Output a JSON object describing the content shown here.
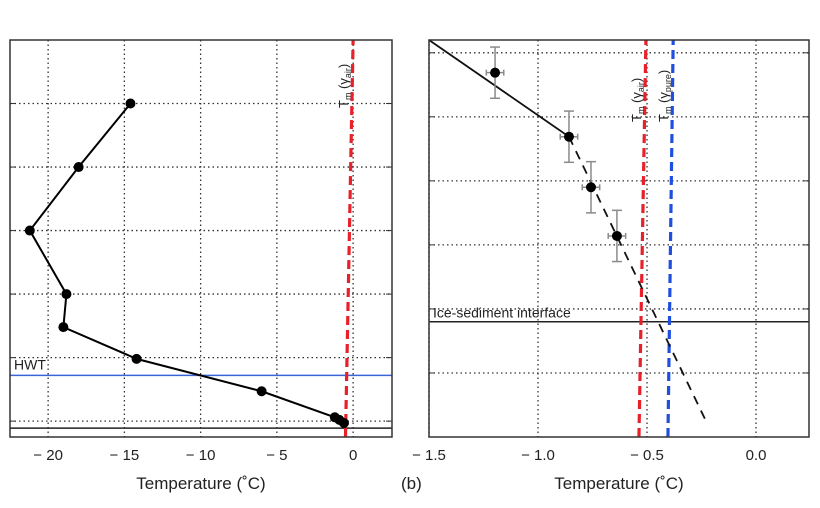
{
  "chart_data": [
    {
      "type": "line",
      "panel_label": "",
      "xlabel": "Temperature (˚C)",
      "ylabel": "",
      "xlim": [
        -22.5,
        2.55
      ],
      "ylim": [
        -0.25,
        6
      ],
      "xticks": [
        -20,
        -15,
        -10,
        -5,
        0
      ],
      "xtick_labels": [
        "− 20",
        "− 15",
        "− 10",
        "− 5",
        "0"
      ],
      "ygrid": [
        0,
        1,
        2,
        3,
        4,
        5
      ],
      "grid": true,
      "series": [
        {
          "x": [
            -14.6,
            -18.0,
            -21.2,
            -18.8,
            -19.0,
            -14.2,
            -6.0,
            -1.2,
            -0.9,
            -0.6
          ],
          "y": [
            5,
            4,
            3,
            2,
            1.48,
            0.98,
            0.47,
            0.06,
            0.02,
            -0.03
          ],
          "color": "#000000",
          "marker": "circle"
        }
      ],
      "vlines": [
        {
          "label_main": "T",
          "label_sub": "m",
          "label_paren": "(γ",
          "label_sub2": "air",
          "label_close": ")",
          "x_bottom": -0.5,
          "x_top": 0,
          "color": "#e8202a",
          "style": "dashed"
        }
      ],
      "hlines": [
        {
          "label": "HWT",
          "y": 0.72,
          "color": "#3a64d8"
        },
        {
          "label": "",
          "y": -0.11,
          "color": "#222222"
        }
      ]
    },
    {
      "type": "scatter",
      "panel_label": "(b)",
      "xlabel": "Temperature (˚C)",
      "ylabel": "",
      "xlim": [
        -1.5,
        0.243
      ],
      "ylim": [
        -1,
        5.2
      ],
      "xticks": [
        -1.5,
        -1.0,
        -0.5,
        0.0
      ],
      "xtick_labels": [
        "− 1.5",
        "− 1.0",
        "− 0.5",
        "0.0"
      ],
      "ygrid": [
        0,
        1,
        2,
        3,
        4,
        5
      ],
      "grid": true,
      "points": {
        "x": [
          -1.197,
          -0.858,
          -0.757,
          -0.638
        ],
        "y": [
          4.69,
          3.69,
          2.9,
          2.14
        ],
        "xerr": 0.04,
        "yerr": 0.4,
        "color": "#000000",
        "errcolor": "#8a8a8a"
      },
      "fit_solid": {
        "x": [
          -1.5,
          -0.858
        ],
        "y": [
          5.2,
          3.69
        ]
      },
      "fit_dashed": {
        "x": [
          -0.858,
          -0.234
        ],
        "y": [
          3.69,
          -0.72
        ]
      },
      "vlines": [
        {
          "label_main": "T",
          "label_sub": "m",
          "label_paren": "(γ",
          "label_sub2": "air",
          "label_close": ")",
          "x_bottom": -0.537,
          "x_top": -0.505,
          "color": "#e8202a",
          "style": "dashed"
        },
        {
          "label_main": "T",
          "label_sub": "m",
          "label_paren": "(γ",
          "label_sub2": "pure",
          "label_close": ")",
          "x_bottom": -0.404,
          "x_top": -0.38,
          "color": "#1f4fe0",
          "style": "dashed"
        }
      ],
      "hlines": [
        {
          "label": "Ice-sediment interface",
          "y": 0.8,
          "color": "#222222"
        }
      ]
    }
  ]
}
